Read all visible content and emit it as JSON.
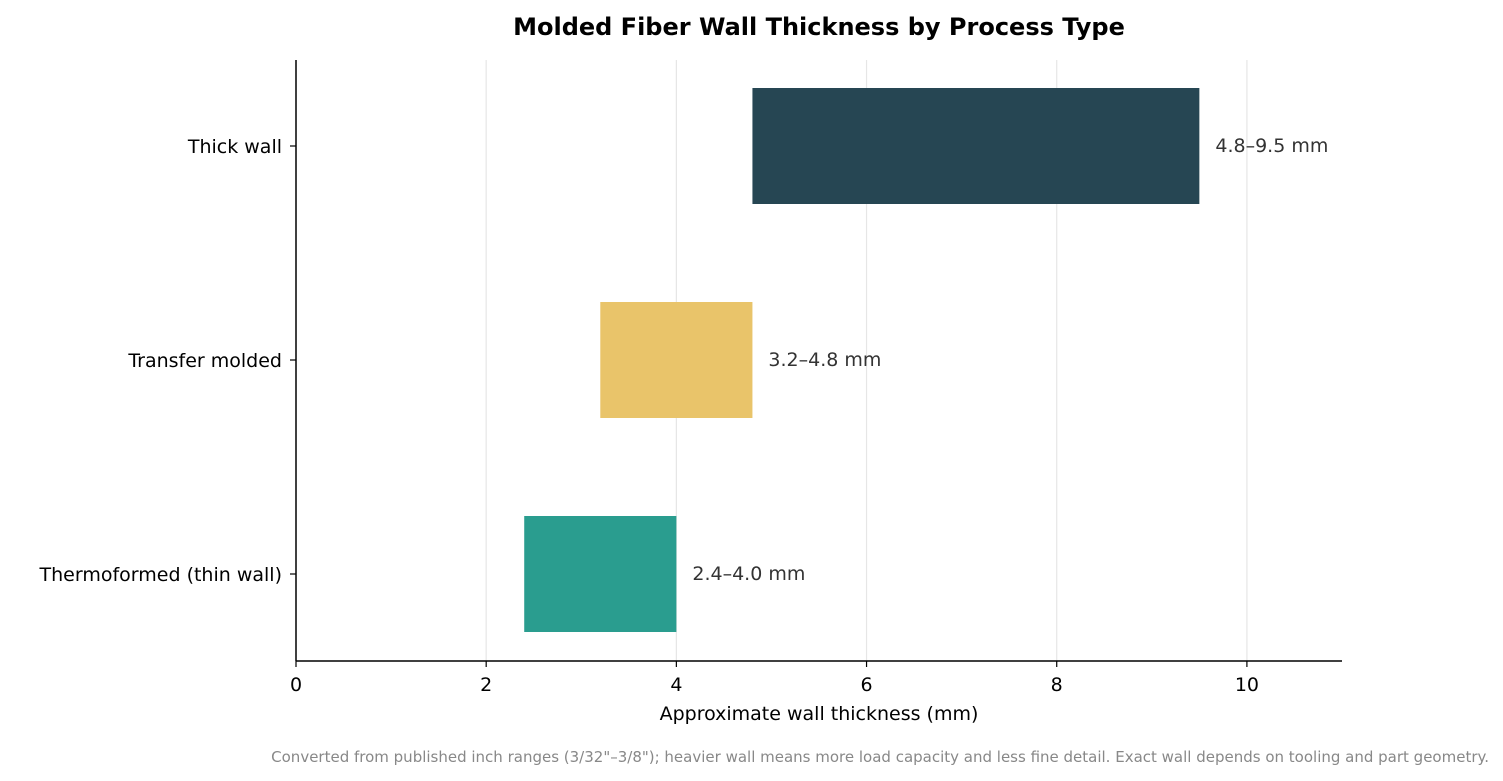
{
  "chart_data": {
    "type": "bar",
    "orientation": "horizontal",
    "title": "Molded Fiber Wall Thickness by Process Type",
    "xlabel": "Approximate wall thickness (mm)",
    "ylabel": "",
    "xlim": [
      0,
      11
    ],
    "xticks": [
      0,
      2,
      4,
      6,
      8,
      10
    ],
    "grid": "vertical",
    "categories": [
      "Thick wall",
      "Transfer molded",
      "Thermoformed (thin wall)"
    ],
    "ranges": [
      {
        "category": "Thick wall",
        "start": 4.8,
        "end": 9.5,
        "label": "4.8–9.5 mm",
        "color": "#264653"
      },
      {
        "category": "Transfer molded",
        "start": 3.2,
        "end": 4.8,
        "label": "3.2–4.8 mm",
        "color": "#e9c46a"
      },
      {
        "category": "Thermoformed (thin wall)",
        "start": 2.4,
        "end": 4.0,
        "label": "2.4–4.0 mm",
        "color": "#2a9d8f"
      }
    ],
    "footnote": "Converted from published inch ranges (3/32\"–3/8\"); heavier wall means more load capacity and less fine detail. Exact wall depends on tooling and part geometry."
  }
}
